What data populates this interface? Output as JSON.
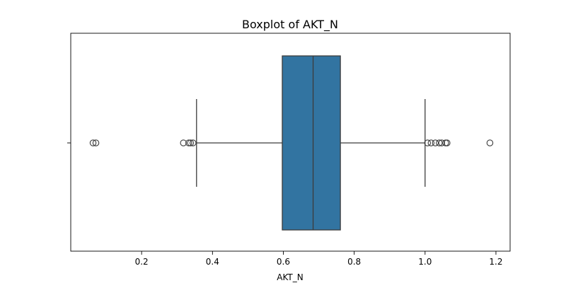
{
  "chart_data": {
    "type": "box",
    "title": "Boxplot of AKT_N",
    "xlabel": "AKT_N",
    "ylabel": "",
    "xlim": [
      0.0,
      1.24
    ],
    "xticks": [
      0.2,
      0.4,
      0.6,
      0.8,
      1.0,
      1.2
    ],
    "xtick_labels": [
      "0.2",
      "0.4",
      "0.6",
      "0.8",
      "1.0",
      "1.2"
    ],
    "orientation": "horizontal",
    "grid": false,
    "legend": "none",
    "box": {
      "whisker_low": 0.355,
      "q1": 0.597,
      "median": 0.684,
      "q3": 0.761,
      "whisker_high": 1.0
    },
    "outliers": [
      0.063,
      0.071,
      0.318,
      0.333,
      0.338,
      0.345,
      1.007,
      1.017,
      1.029,
      1.04,
      1.047,
      1.058,
      1.062,
      1.183
    ],
    "colors": {
      "box_fill": "#3274a1",
      "line": "#3c3c3c",
      "frame": "#000000"
    }
  }
}
